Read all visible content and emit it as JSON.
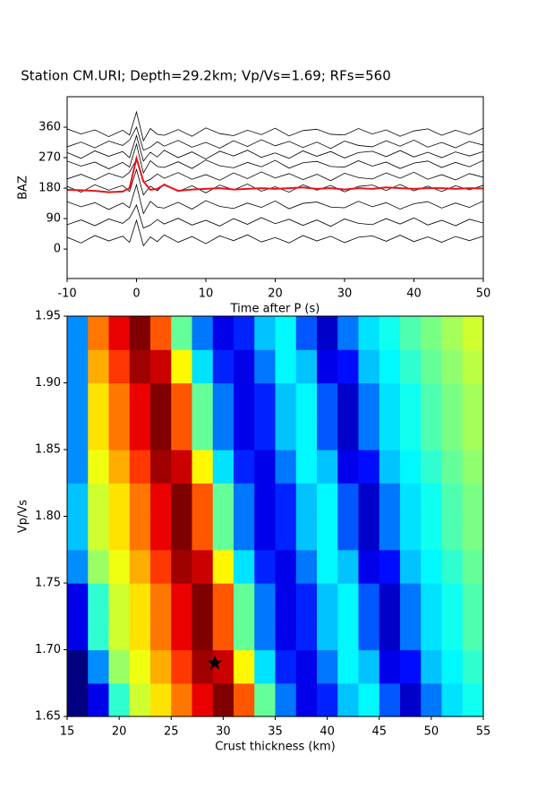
{
  "chart_data": [
    {
      "type": "line",
      "title": "Station CM.URI; Depth=29.2km; Vp/Vs=1.69; RFs=560",
      "xlabel": "Time after P (s)",
      "ylabel": "BAZ",
      "xlim": [
        -10,
        50
      ],
      "ylim": [
        -87,
        450
      ],
      "xticks": [
        -10,
        0,
        10,
        20,
        30,
        40,
        50
      ],
      "yticks": [
        0,
        90,
        180,
        270,
        360
      ],
      "x": [
        -10,
        -8,
        -6,
        -4,
        -2,
        -1,
        0,
        1,
        2,
        3,
        4,
        6,
        8,
        10,
        12,
        14,
        16,
        18,
        20,
        22,
        24,
        26,
        28,
        30,
        32,
        34,
        36,
        38,
        40,
        42,
        44,
        46,
        48,
        50
      ],
      "series": [
        {
          "color": "#000000",
          "values": [
            35,
            18,
            40,
            24,
            38,
            20,
            85,
            10,
            36,
            22,
            42,
            20,
            37,
            16,
            39,
            25,
            42,
            21,
            34,
            18,
            40,
            24,
            38,
            19,
            35,
            39,
            23,
            41,
            22,
            36,
            20,
            37,
            25,
            38
          ]
        },
        {
          "color": "#000000",
          "values": [
            72,
            86,
            69,
            89,
            76,
            92,
            130,
            62,
            71,
            87,
            74,
            91,
            71,
            85,
            68,
            90,
            73,
            93,
            75,
            88,
            70,
            86,
            67,
            89,
            76,
            72,
            90,
            74,
            92,
            71,
            85,
            69,
            88,
            77
          ]
        },
        {
          "color": "#000000",
          "values": [
            140,
            125,
            137,
            117,
            136,
            122,
            190,
            105,
            141,
            124,
            121,
            138,
            118,
            143,
            126,
            120,
            136,
            123,
            142,
            119,
            135,
            139,
            124,
            122,
            141,
            125,
            137,
            118,
            134,
            140,
            121,
            136,
            123,
            142
          ]
        },
        {
          "color": "#000000",
          "values": [
            185,
            168,
            190,
            174,
            188,
            170,
            235,
            160,
            186,
            172,
            192,
            170,
            187,
            166,
            189,
            175,
            192,
            171,
            184,
            168,
            190,
            174,
            188,
            169,
            185,
            189,
            173,
            191,
            172,
            186,
            170,
            187,
            175,
            188
          ]
        },
        {
          "color": "#000000",
          "values": [
            207,
            221,
            204,
            224,
            211,
            227,
            265,
            197,
            206,
            222,
            209,
            226,
            206,
            220,
            203,
            225,
            208,
            228,
            210,
            223,
            205,
            221,
            202,
            224,
            211,
            207,
            225,
            209,
            227,
            206,
            220,
            204,
            223,
            212
          ]
        },
        {
          "color": "#000000",
          "values": [
            260,
            245,
            257,
            237,
            256,
            242,
            310,
            225,
            261,
            244,
            241,
            258,
            238,
            263,
            246,
            240,
            256,
            243,
            262,
            239,
            255,
            259,
            244,
            242,
            261,
            245,
            257,
            238,
            254,
            260,
            241,
            256,
            243,
            262
          ]
        },
        {
          "color": "#000000",
          "values": [
            285,
            268,
            290,
            274,
            288,
            270,
            335,
            260,
            286,
            272,
            292,
            270,
            287,
            266,
            289,
            275,
            292,
            271,
            284,
            268,
            290,
            274,
            288,
            269,
            285,
            289,
            273,
            291,
            272,
            286,
            270,
            287,
            275,
            288
          ]
        },
        {
          "color": "#000000",
          "values": [
            302,
            316,
            299,
            319,
            306,
            322,
            360,
            292,
            301,
            317,
            304,
            321,
            301,
            315,
            298,
            320,
            303,
            323,
            305,
            318,
            300,
            316,
            297,
            319,
            306,
            302,
            320,
            304,
            322,
            301,
            315,
            299,
            318,
            307
          ]
        },
        {
          "color": "#000000",
          "values": [
            355,
            340,
            352,
            332,
            351,
            337,
            405,
            320,
            356,
            339,
            336,
            353,
            333,
            358,
            341,
            335,
            351,
            338,
            357,
            334,
            350,
            354,
            339,
            337,
            356,
            340,
            352,
            333,
            349,
            355,
            336,
            351,
            338,
            357
          ]
        },
        {
          "color": "#e8141c",
          "values": [
            175,
            174,
            172,
            168,
            170,
            180,
            268,
            200,
            175,
            178,
            190,
            172,
            176,
            178,
            180,
            176,
            178,
            180,
            178,
            180,
            182,
            178,
            180,
            176,
            180,
            178,
            182,
            180,
            178,
            180,
            180,
            178,
            180,
            179
          ]
        }
      ]
    },
    {
      "type": "heatmap",
      "xlabel": "Crust thickness (km)",
      "ylabel": "Vp/Vs",
      "xlim": [
        15,
        55
      ],
      "ylim": [
        1.65,
        1.95
      ],
      "xticks": [
        15,
        20,
        25,
        30,
        35,
        40,
        45,
        50,
        55
      ],
      "yticks": [
        1.65,
        {
          "value": 1.7,
          "label": "1.70"
        },
        1.75,
        {
          "value": 1.8,
          "label": "1.80"
        },
        1.85,
        {
          "value": 1.9,
          "label": "1.90"
        },
        1.95
      ],
      "colormap": "jet",
      "x": [
        16,
        18,
        20,
        22,
        24,
        26,
        28,
        30,
        32,
        34,
        36,
        38,
        40,
        42,
        44,
        46,
        48,
        50,
        52,
        54
      ],
      "y": [
        1.6625,
        1.6875,
        1.7125,
        1.7375,
        1.7625,
        1.7875,
        1.8125,
        1.8375,
        1.8625,
        1.8875,
        1.9125,
        1.9375
      ],
      "z": [
        [
          0.05,
          0.15,
          0.45,
          0.6,
          0.67,
          0.77,
          0.9,
          1.0,
          0.8,
          0.5,
          0.28,
          0.15,
          0.2,
          0.35,
          0.4,
          0.25,
          0.12,
          0.28,
          0.38,
          0.42
        ],
        [
          0.05,
          0.3,
          0.55,
          0.63,
          0.72,
          0.83,
          0.97,
          0.93,
          0.65,
          0.38,
          0.2,
          0.15,
          0.28,
          0.4,
          0.35,
          0.15,
          0.18,
          0.35,
          0.4,
          0.45
        ],
        [
          0.15,
          0.45,
          0.6,
          0.67,
          0.77,
          0.9,
          1.0,
          0.8,
          0.5,
          0.28,
          0.15,
          0.2,
          0.35,
          0.4,
          0.25,
          0.12,
          0.28,
          0.38,
          0.42,
          0.48
        ],
        [
          0.15,
          0.45,
          0.6,
          0.67,
          0.77,
          0.9,
          1.0,
          0.8,
          0.5,
          0.28,
          0.15,
          0.2,
          0.35,
          0.4,
          0.25,
          0.12,
          0.28,
          0.38,
          0.42,
          0.48
        ],
        [
          0.3,
          0.55,
          0.63,
          0.72,
          0.83,
          0.97,
          0.93,
          0.65,
          0.38,
          0.2,
          0.15,
          0.28,
          0.4,
          0.35,
          0.15,
          0.18,
          0.35,
          0.4,
          0.45,
          0.5
        ],
        [
          0.35,
          0.6,
          0.67,
          0.77,
          0.9,
          1.0,
          0.8,
          0.5,
          0.28,
          0.15,
          0.2,
          0.35,
          0.4,
          0.25,
          0.12,
          0.28,
          0.38,
          0.42,
          0.48,
          0.52
        ],
        [
          0.35,
          0.6,
          0.67,
          0.77,
          0.9,
          1.0,
          0.8,
          0.5,
          0.28,
          0.15,
          0.2,
          0.35,
          0.4,
          0.25,
          0.12,
          0.28,
          0.38,
          0.42,
          0.48,
          0.52
        ],
        [
          0.3,
          0.63,
          0.72,
          0.83,
          0.97,
          0.93,
          0.65,
          0.38,
          0.2,
          0.15,
          0.28,
          0.4,
          0.35,
          0.15,
          0.18,
          0.35,
          0.4,
          0.45,
          0.5,
          0.54
        ],
        [
          0.3,
          0.67,
          0.77,
          0.9,
          1.0,
          0.8,
          0.5,
          0.28,
          0.15,
          0.2,
          0.35,
          0.4,
          0.25,
          0.12,
          0.28,
          0.38,
          0.42,
          0.48,
          0.52,
          0.56
        ],
        [
          0.3,
          0.67,
          0.77,
          0.9,
          1.0,
          0.8,
          0.5,
          0.28,
          0.15,
          0.2,
          0.35,
          0.4,
          0.25,
          0.12,
          0.28,
          0.38,
          0.42,
          0.48,
          0.52,
          0.56
        ],
        [
          0.3,
          0.72,
          0.83,
          0.97,
          0.93,
          0.65,
          0.38,
          0.2,
          0.15,
          0.28,
          0.4,
          0.35,
          0.15,
          0.18,
          0.35,
          0.4,
          0.45,
          0.5,
          0.54,
          0.58
        ],
        [
          0.3,
          0.77,
          0.9,
          1.0,
          0.8,
          0.5,
          0.28,
          0.15,
          0.2,
          0.35,
          0.4,
          0.25,
          0.12,
          0.28,
          0.38,
          0.42,
          0.48,
          0.52,
          0.56,
          0.6
        ]
      ],
      "marker": {
        "x": 29.2,
        "y": 1.69,
        "color": "#000000"
      }
    }
  ]
}
